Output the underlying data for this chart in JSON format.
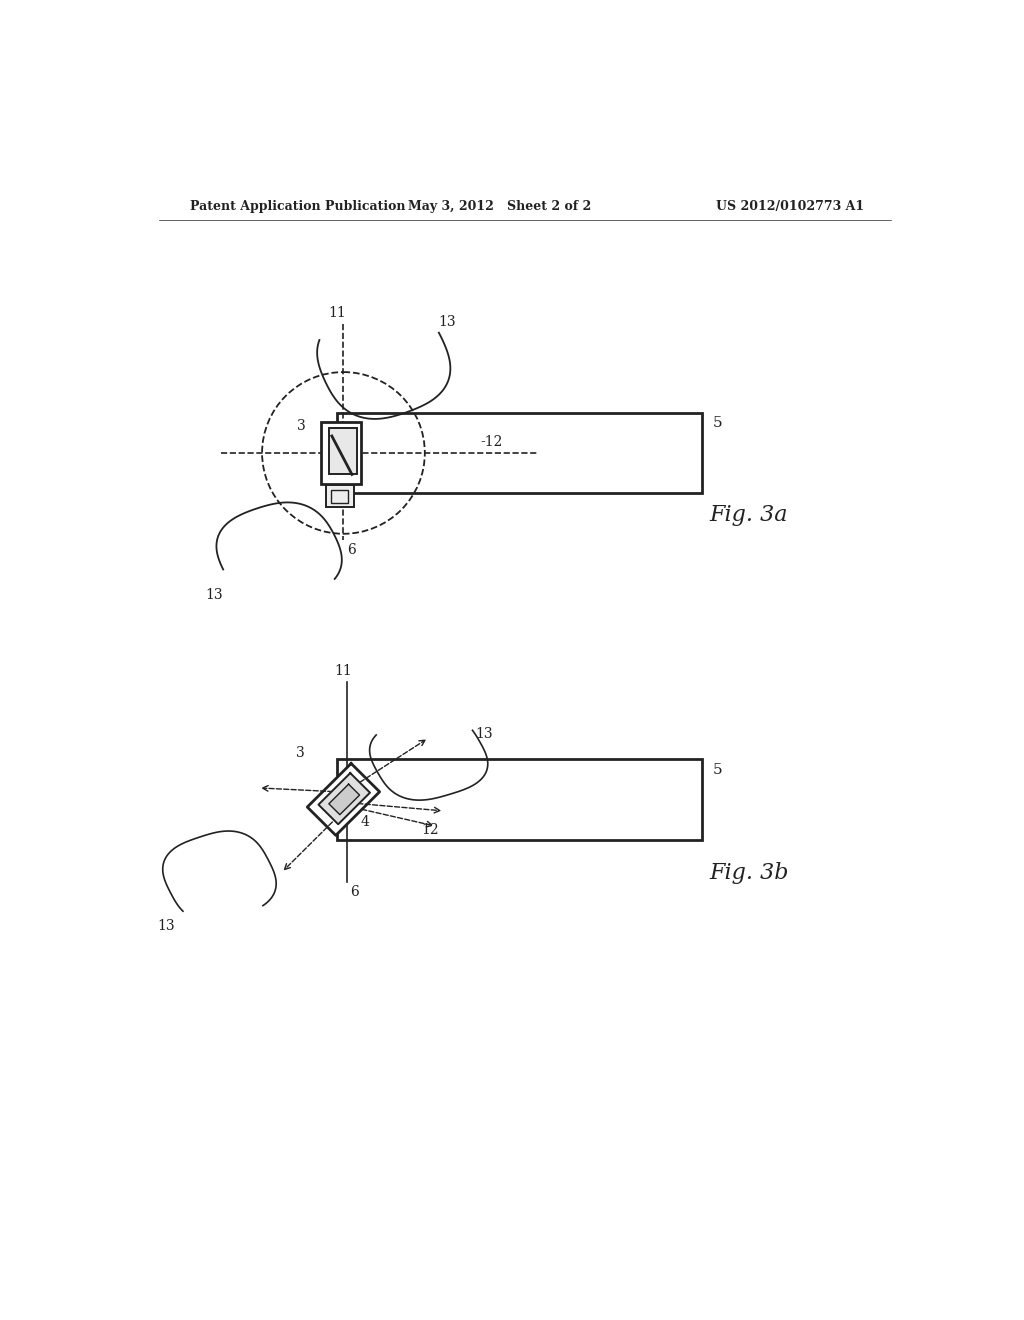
{
  "background_color": "#ffffff",
  "header_left": "Patent Application Publication",
  "header_center": "May 3, 2012   Sheet 2 of 2",
  "header_right": "US 2012/0102773 A1",
  "fig3a_label": "Fig. 3a",
  "fig3b_label": "Fig. 3b"
}
